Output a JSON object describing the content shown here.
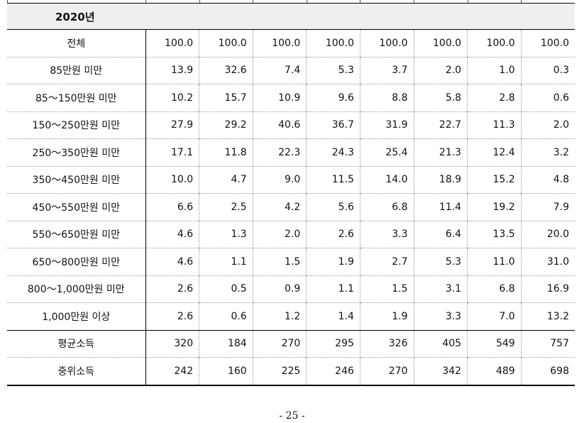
{
  "section": {
    "title": "2020년"
  },
  "table": {
    "rows": [
      {
        "label": "전체",
        "values": [
          "100.0",
          "100.0",
          "100.0",
          "100.0",
          "100.0",
          "100.0",
          "100.0",
          "100.0"
        ]
      },
      {
        "label": "85만원 미만",
        "values": [
          "13.9",
          "32.6",
          "7.4",
          "5.3",
          "3.7",
          "2.0",
          "1.0",
          "0.3"
        ]
      },
      {
        "label": "85～150만원 미만",
        "values": [
          "10.2",
          "15.7",
          "10.9",
          "9.6",
          "8.8",
          "5.8",
          "2.8",
          "0.6"
        ]
      },
      {
        "label": "150～250만원 미만",
        "values": [
          "27.9",
          "29.2",
          "40.6",
          "36.7",
          "31.9",
          "22.7",
          "11.3",
          "2.0"
        ]
      },
      {
        "label": "250～350만원 미만",
        "values": [
          "17.1",
          "11.8",
          "22.3",
          "24.3",
          "25.4",
          "21.3",
          "12.4",
          "3.2"
        ]
      },
      {
        "label": "350～450만원 미만",
        "values": [
          "10.0",
          "4.7",
          "9.0",
          "11.5",
          "14.0",
          "18.9",
          "15.2",
          "4.8"
        ]
      },
      {
        "label": "450～550만원 미만",
        "values": [
          "6.6",
          "2.5",
          "4.2",
          "5.6",
          "6.8",
          "11.4",
          "19.2",
          "7.9"
        ]
      },
      {
        "label": "550～650만원 미만",
        "values": [
          "4.6",
          "1.3",
          "2.0",
          "2.6",
          "3.3",
          "6.4",
          "13.5",
          "20.0"
        ]
      },
      {
        "label": "650～800만원 미만",
        "values": [
          "4.6",
          "1.1",
          "1.5",
          "1.9",
          "2.7",
          "5.3",
          "11.0",
          "31.0"
        ]
      },
      {
        "label": "800～1,000만원 미만",
        "values": [
          "2.6",
          "0.5",
          "0.9",
          "1.1",
          "1.5",
          "3.1",
          "6.8",
          "16.9"
        ]
      },
      {
        "label": "1,000만원 이상",
        "values": [
          "2.6",
          "0.6",
          "1.2",
          "1.4",
          "1.9",
          "3.3",
          "7.0",
          "13.2"
        ]
      },
      {
        "label": "평균소득",
        "values": [
          "320",
          "184",
          "270",
          "295",
          "326",
          "405",
          "549",
          "757"
        ]
      },
      {
        "label": "중위소득",
        "values": [
          "242",
          "160",
          "225",
          "246",
          "270",
          "342",
          "489",
          "698"
        ]
      }
    ]
  },
  "footer": {
    "page_number": "- 25 -"
  }
}
